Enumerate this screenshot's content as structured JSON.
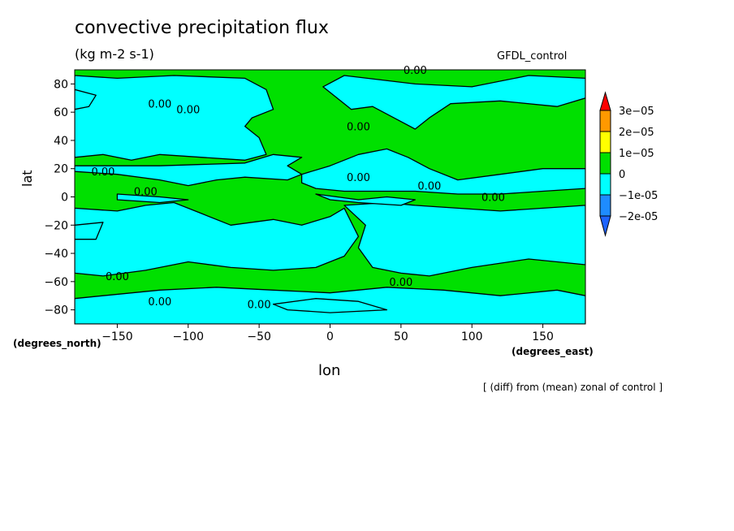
{
  "chart_data": {
    "type": "heatmap",
    "title": "convective precipitation flux",
    "units": "(kg m-2 s-1)",
    "dataset_label": "GFDL_control",
    "xlabel": "lon",
    "ylabel": "lat",
    "x_units_label": "(degrees_east)",
    "y_units_label": "(degrees_north)",
    "footnote": "[ (diff) from (mean) zonal of control ]",
    "xlim": [
      -180,
      180
    ],
    "ylim": [
      -90,
      90
    ],
    "x_ticks": [
      -150,
      -100,
      -50,
      0,
      50,
      100,
      150
    ],
    "y_ticks": [
      -80,
      -60,
      -40,
      -20,
      0,
      20,
      40,
      60,
      80
    ],
    "contour_label": "0.00",
    "colorbar": {
      "levels": [
        {
          "label": "-2e-05",
          "color": "#1e8cff"
        },
        {
          "label": "-1e-05",
          "color": "#00ffff"
        },
        {
          "label": "0",
          "color": "#00e000"
        },
        {
          "label": "1e-05",
          "color": "#ffff00"
        },
        {
          "label": "2e-05",
          "color": "#ff9900"
        },
        {
          "label": "3e-05",
          "color": "#ff0000"
        }
      ],
      "under_color": "#1e64ff",
      "over_color": "#ff0000"
    },
    "colors": {
      "negative": "#00ffff",
      "positive": "#00e000"
    }
  }
}
